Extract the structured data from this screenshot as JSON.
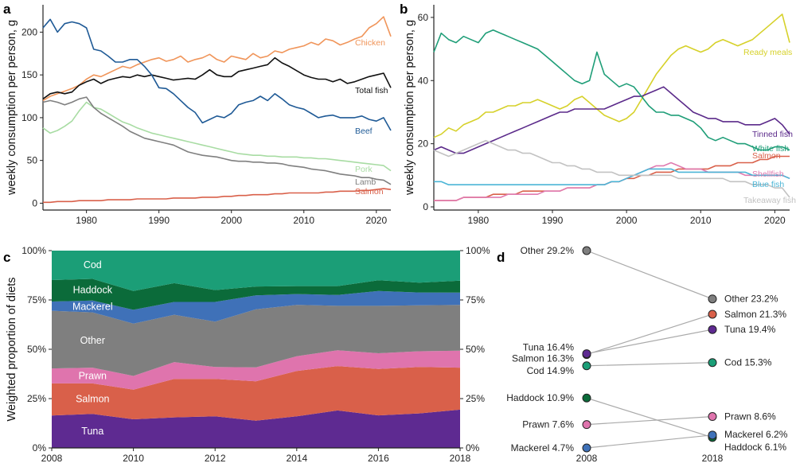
{
  "panels": {
    "a": "a",
    "b": "b",
    "c": "c",
    "d": "d"
  },
  "colors": {
    "chicken": "#f0955a",
    "total_fish": "#111111",
    "beef": "#1f5a96",
    "pork": "#a8dca3",
    "lamb": "#7f7f7f",
    "salmon": "#d9604a",
    "ready_meals": "#d6d12a",
    "tinned_fish": "#5b2a8a",
    "white_fish": "#1f9e78",
    "shellfish": "#e07bb0",
    "blue_fish": "#4bb5d6",
    "takeaway_fish": "#c2c2c2",
    "cod": "#1b9e77",
    "haddock": "#0b6b3a",
    "mackerel": "#3f71b8",
    "other": "#7f7f7f",
    "prawn": "#df74ad",
    "tuna": "#5e2a91"
  },
  "chart_data": [
    {
      "id": "a",
      "type": "line",
      "ylabel": "weekly consumption per person, g",
      "xlim": [
        1974,
        2022
      ],
      "ylim": [
        -8,
        232
      ],
      "xticks": [
        "1980",
        "1990",
        "2000",
        "2010",
        "2020"
      ],
      "yticks": [
        "0",
        "50",
        "100",
        "150",
        "200"
      ],
      "x": [
        1974,
        1975,
        1976,
        1977,
        1978,
        1979,
        1980,
        1981,
        1982,
        1983,
        1984,
        1985,
        1986,
        1987,
        1988,
        1989,
        1990,
        1991,
        1992,
        1993,
        1994,
        1995,
        1996,
        1997,
        1998,
        1999,
        2000,
        2001,
        2002,
        2003,
        2004,
        2005,
        2006,
        2007,
        2008,
        2009,
        2010,
        2011,
        2012,
        2013,
        2014,
        2015,
        2016,
        2017,
        2018,
        2019,
        2020,
        2021,
        2022
      ],
      "series": [
        {
          "key": "chicken",
          "name": "Chicken",
          "values": [
            120,
            125,
            128,
            131,
            134,
            138,
            145,
            150,
            148,
            152,
            156,
            160,
            158,
            162,
            165,
            168,
            170,
            166,
            168,
            172,
            165,
            168,
            170,
            174,
            168,
            165,
            172,
            170,
            168,
            175,
            170,
            172,
            178,
            176,
            180,
            182,
            184,
            188,
            185,
            192,
            190,
            185,
            188,
            192,
            195,
            205,
            210,
            218,
            195
          ]
        },
        {
          "key": "total_fish",
          "name": "Total fish",
          "values": [
            122,
            128,
            130,
            128,
            130,
            138,
            142,
            145,
            140,
            144,
            146,
            148,
            147,
            150,
            148,
            150,
            148,
            146,
            144,
            145,
            146,
            145,
            150,
            156,
            150,
            148,
            148,
            154,
            156,
            158,
            160,
            162,
            170,
            164,
            160,
            155,
            150,
            147,
            145,
            145,
            142,
            145,
            140,
            142,
            145,
            148,
            150,
            152,
            135
          ]
        },
        {
          "key": "beef",
          "name": "Beef",
          "values": [
            205,
            215,
            200,
            210,
            212,
            210,
            205,
            180,
            178,
            172,
            165,
            165,
            168,
            168,
            160,
            150,
            135,
            134,
            128,
            120,
            112,
            106,
            94,
            98,
            102,
            100,
            105,
            115,
            118,
            120,
            125,
            120,
            128,
            122,
            115,
            112,
            110,
            105,
            100,
            102,
            103,
            100,
            100,
            100,
            102,
            98,
            96,
            100,
            85
          ]
        },
        {
          "key": "pork",
          "name": "Pork",
          "values": [
            88,
            82,
            85,
            90,
            96,
            108,
            118,
            112,
            110,
            105,
            100,
            95,
            92,
            88,
            85,
            82,
            80,
            78,
            76,
            74,
            72,
            70,
            68,
            66,
            64,
            62,
            60,
            58,
            57,
            56,
            56,
            55,
            55,
            54,
            54,
            54,
            53,
            53,
            52,
            52,
            51,
            50,
            49,
            48,
            47,
            46,
            45,
            44,
            38
          ]
        },
        {
          "key": "lamb",
          "name": "Lamb",
          "values": [
            118,
            120,
            118,
            115,
            118,
            122,
            124,
            112,
            105,
            100,
            95,
            90,
            84,
            80,
            76,
            74,
            72,
            70,
            68,
            64,
            60,
            58,
            56,
            55,
            54,
            52,
            50,
            49,
            49,
            48,
            48,
            47,
            47,
            46,
            44,
            43,
            42,
            40,
            39,
            38,
            36,
            34,
            33,
            32,
            30,
            30,
            28,
            27,
            22
          ]
        },
        {
          "key": "salmon",
          "name": "Salmon",
          "values": [
            1,
            1,
            2,
            2,
            2,
            3,
            3,
            3,
            3,
            4,
            4,
            4,
            4,
            5,
            5,
            5,
            5,
            5,
            6,
            6,
            6,
            6,
            7,
            7,
            7,
            8,
            8,
            9,
            9,
            10,
            10,
            10,
            11,
            11,
            12,
            12,
            12,
            12,
            12,
            13,
            13,
            14,
            14,
            14,
            15,
            15,
            16,
            17,
            16
          ]
        }
      ],
      "labels": [
        "Chicken",
        "Total fish",
        "Beef",
        "Pork",
        "Lamb",
        "Salmon"
      ]
    },
    {
      "id": "b",
      "type": "line",
      "ylabel": "weekly consumption per person, g",
      "xlim": [
        1974,
        2022
      ],
      "ylim": [
        -1,
        64
      ],
      "xticks": [
        "1980",
        "1990",
        "2000",
        "2010",
        "2020"
      ],
      "yticks": [
        "0",
        "20",
        "40",
        "60"
      ],
      "x": [
        1974,
        1975,
        1976,
        1977,
        1978,
        1979,
        1980,
        1981,
        1982,
        1983,
        1984,
        1985,
        1986,
        1987,
        1988,
        1989,
        1990,
        1991,
        1992,
        1993,
        1994,
        1995,
        1996,
        1997,
        1998,
        1999,
        2000,
        2001,
        2002,
        2003,
        2004,
        2005,
        2006,
        2007,
        2008,
        2009,
        2010,
        2011,
        2012,
        2013,
        2014,
        2015,
        2016,
        2017,
        2018,
        2019,
        2020,
        2021,
        2022
      ],
      "series": [
        {
          "key": "ready_meals",
          "name": "Ready meals",
          "values": [
            22,
            23,
            25,
            24,
            26,
            27,
            28,
            30,
            30,
            31,
            32,
            32,
            33,
            33,
            34,
            33,
            32,
            31,
            32,
            34,
            35,
            33,
            31,
            29,
            28,
            27,
            28,
            30,
            34,
            38,
            42,
            45,
            48,
            50,
            51,
            50,
            49,
            50,
            52,
            53,
            52,
            51,
            52,
            53,
            55,
            57,
            59,
            61,
            52
          ]
        },
        {
          "key": "tinned_fish",
          "name": "Tinned fish",
          "values": [
            18,
            19,
            18,
            17,
            17,
            18,
            19,
            20,
            21,
            22,
            23,
            24,
            25,
            26,
            27,
            28,
            29,
            30,
            30,
            31,
            31,
            31,
            31,
            31,
            32,
            33,
            34,
            35,
            35,
            36,
            37,
            38,
            36,
            34,
            32,
            30,
            29,
            28,
            28,
            27,
            27,
            27,
            26,
            26,
            26,
            27,
            28,
            26,
            23
          ]
        },
        {
          "key": "white_fish",
          "name": "White fish",
          "values": [
            49,
            55,
            53,
            52,
            54,
            53,
            52,
            55,
            56,
            55,
            54,
            53,
            52,
            51,
            50,
            48,
            46,
            44,
            42,
            40,
            39,
            40,
            49,
            42,
            40,
            38,
            39,
            38,
            35,
            32,
            30,
            30,
            29,
            29,
            28,
            27,
            25,
            22,
            21,
            22,
            21,
            20,
            20,
            19,
            18,
            18,
            19,
            19,
            18
          ]
        },
        {
          "key": "salmon",
          "name": "Salmon",
          "values": [
            2,
            2,
            2,
            2,
            3,
            3,
            3,
            3,
            4,
            4,
            4,
            4,
            5,
            5,
            5,
            5,
            5,
            5,
            6,
            6,
            6,
            6,
            7,
            7,
            8,
            8,
            9,
            9,
            10,
            10,
            11,
            11,
            11,
            12,
            12,
            12,
            12,
            12,
            13,
            13,
            13,
            14,
            14,
            14,
            15,
            15,
            16,
            16,
            16
          ]
        },
        {
          "key": "shellfish",
          "name": "Shellfish",
          "values": [
            2,
            2,
            2,
            2,
            3,
            3,
            3,
            3,
            3,
            3,
            4,
            4,
            4,
            4,
            4,
            5,
            5,
            5,
            6,
            6,
            6,
            6,
            7,
            7,
            8,
            8,
            9,
            10,
            11,
            12,
            13,
            13,
            14,
            13,
            12,
            12,
            12,
            11,
            11,
            11,
            11,
            11,
            10,
            10,
            10,
            10,
            10,
            10,
            9
          ]
        },
        {
          "key": "blue_fish",
          "name": "Blue fish",
          "values": [
            8,
            8,
            7,
            7,
            7,
            7,
            7,
            7,
            7,
            7,
            7,
            7,
            7,
            7,
            7,
            7,
            7,
            7,
            7,
            7,
            7,
            7,
            7,
            7,
            8,
            8,
            9,
            10,
            11,
            12,
            12,
            12,
            12,
            11,
            11,
            11,
            11,
            11,
            11,
            11,
            11,
            11,
            11,
            10,
            10,
            10,
            10,
            10,
            9
          ]
        },
        {
          "key": "takeaway_fish",
          "name": "Takeaway fish",
          "values": [
            18,
            17,
            16,
            17,
            18,
            19,
            20,
            21,
            20,
            19,
            18,
            18,
            17,
            17,
            16,
            15,
            14,
            14,
            13,
            13,
            12,
            12,
            11,
            11,
            11,
            10,
            10,
            10,
            10,
            10,
            10,
            10,
            10,
            9,
            9,
            9,
            9,
            9,
            9,
            9,
            8,
            8,
            8,
            7,
            7,
            7,
            6,
            6,
            3
          ]
        }
      ],
      "labels": [
        "Ready meals",
        "Tinned fish",
        "White fish",
        "Salmon",
        "Shellfish",
        "Blue fish",
        "Takeaway fish"
      ]
    },
    {
      "id": "c",
      "type": "area",
      "ylabel": "Weighted proportion of diets",
      "xticks": [
        "2008",
        "2010",
        "2012",
        "2014",
        "2016",
        "2018"
      ],
      "yticks": [
        "0%",
        "25%",
        "50%",
        "75%",
        "100%"
      ],
      "yticks_right": [
        "0%",
        "25%",
        "50%",
        "75%",
        "100%"
      ],
      "x": [
        2008,
        2009,
        2010,
        2011,
        2012,
        2013,
        2014,
        2015,
        2016,
        2017,
        2018
      ],
      "stack_bottom_to_top": [
        {
          "key": "tuna",
          "name": "Tuna",
          "values": [
            16.4,
            17.2,
            14.5,
            15.5,
            16.0,
            13.8,
            16.0,
            19.0,
            16.5,
            17.5,
            19.4
          ]
        },
        {
          "key": "salmon",
          "name": "Salmon",
          "values": [
            16.3,
            15.5,
            15.0,
            19.5,
            19.0,
            20.0,
            23.0,
            22.5,
            23.5,
            23.5,
            21.3
          ]
        },
        {
          "key": "prawn",
          "name": "Prawn",
          "values": [
            7.6,
            8.0,
            7.0,
            8.5,
            6.0,
            7.0,
            7.5,
            8.0,
            8.0,
            8.0,
            8.6
          ]
        },
        {
          "key": "other",
          "name": "Other",
          "values": [
            29.2,
            28.0,
            26.5,
            24.0,
            23.0,
            29.5,
            26.0,
            22.5,
            24.0,
            23.3,
            23.2
          ]
        },
        {
          "key": "mackerel",
          "name": "Mackerel",
          "values": [
            4.7,
            6.0,
            7.0,
            6.5,
            10.0,
            7.0,
            5.5,
            5.5,
            7.5,
            6.5,
            6.2
          ]
        },
        {
          "key": "haddock",
          "name": "Haddock",
          "values": [
            10.9,
            11.0,
            9.5,
            9.5,
            6.0,
            4.5,
            4.0,
            4.5,
            5.5,
            5.0,
            6.1
          ]
        },
        {
          "key": "cod",
          "name": "Cod",
          "values": [
            14.9,
            14.3,
            20.5,
            16.5,
            20.0,
            18.2,
            18.0,
            18.0,
            15.0,
            16.2,
            15.3
          ]
        }
      ],
      "labels": [
        "Cod",
        "Haddock",
        "Mackerel",
        "Other",
        "Prawn",
        "Salmon",
        "Tuna"
      ]
    },
    {
      "id": "d",
      "type": "slope",
      "xticks": [
        "2008",
        "2018"
      ],
      "items": [
        {
          "key": "other",
          "name": "Other",
          "v2008": 29.2,
          "v2018": 23.2,
          "label2008": "Other 29.2%",
          "label2018": "Other 23.2%"
        },
        {
          "key": "salmon",
          "name": "Salmon",
          "v2008": 16.3,
          "v2018": 21.3,
          "label2008": "Salmon 16.3%",
          "label2018": "Salmon 21.3%"
        },
        {
          "key": "tuna",
          "name": "Tuna",
          "v2008": 16.4,
          "v2018": 19.4,
          "label2008": "Tuna 16.4%",
          "label2018": "Tuna 19.4%"
        },
        {
          "key": "cod",
          "name": "Cod",
          "v2008": 14.9,
          "v2018": 15.3,
          "label2008": "Cod 14.9%",
          "label2018": "Cod 15.3%"
        },
        {
          "key": "haddock",
          "name": "Haddock",
          "v2008": 10.9,
          "v2018": 6.1,
          "label2008": "Haddock 10.9%",
          "label2018": "Haddock 6.1%"
        },
        {
          "key": "prawn",
          "name": "Prawn",
          "v2008": 7.6,
          "v2018": 8.6,
          "label2008": "Prawn 7.6%",
          "label2018": "Prawn 8.6%"
        },
        {
          "key": "mackerel",
          "name": "Mackerel",
          "v2008": 4.7,
          "v2018": 6.2,
          "label2008": "Mackerel 4.7%",
          "label2018": "Mackerel 6.2%"
        }
      ]
    }
  ]
}
